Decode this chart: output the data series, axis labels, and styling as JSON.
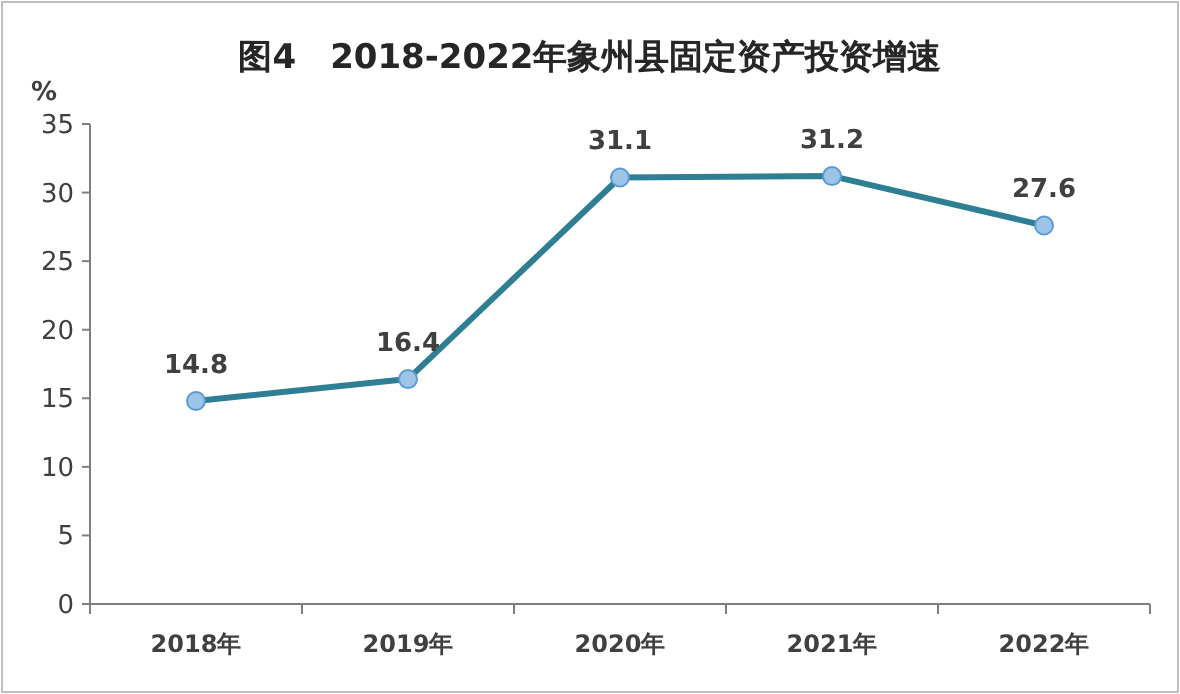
{
  "chart_data": {
    "type": "line",
    "title": "图4　2018-2022年象州县固定资产投资增速",
    "ylabel": "%",
    "categories": [
      "2018年",
      "2019年",
      "2020年",
      "2021年",
      "2022年"
    ],
    "series": [
      {
        "color": "#2e7f93",
        "values": [
          14.8,
          16.4,
          31.1,
          31.2,
          27.6
        ]
      }
    ],
    "ylim": [
      0,
      35
    ],
    "yticks": [
      0,
      5,
      10,
      15,
      20,
      25,
      30,
      35
    ],
    "data_labels": true,
    "marker": "circle"
  }
}
